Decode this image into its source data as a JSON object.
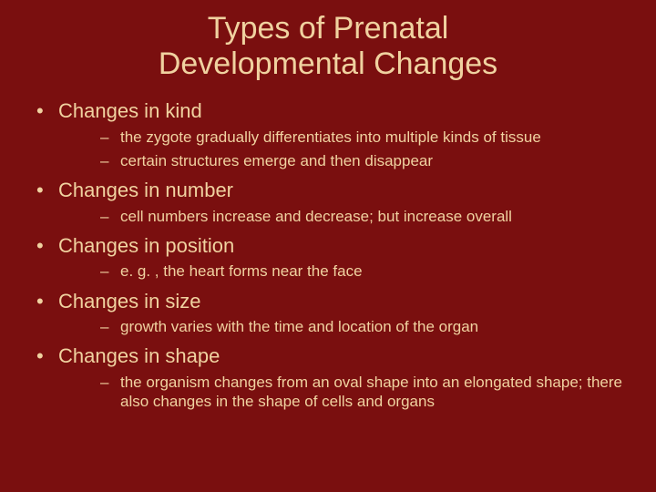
{
  "colors": {
    "background": "#7a0f0f",
    "text": "#f0d2a0"
  },
  "typography": {
    "title_fontsize": 34,
    "main_fontsize": 22,
    "sub_fontsize": 17,
    "font_family": "Arial"
  },
  "title_line1": "Types of Prenatal",
  "title_line2": "Developmental Changes",
  "items": [
    {
      "label": "Changes in kind",
      "subs": [
        "the zygote gradually differentiates into multiple kinds of tissue",
        "certain structures emerge and then disappear"
      ]
    },
    {
      "label": "Changes in number",
      "subs": [
        "cell numbers increase and decrease; but increase overall"
      ]
    },
    {
      "label": "Changes in position",
      "subs": [
        "e. g. , the heart forms near the face"
      ]
    },
    {
      "label": "Changes in size",
      "subs": [
        "growth varies with the time and location of the organ"
      ]
    },
    {
      "label": "Changes in shape",
      "subs": [
        "the organism changes from an oval shape into an elongated shape; there also changes in the shape of cells and organs"
      ]
    }
  ]
}
